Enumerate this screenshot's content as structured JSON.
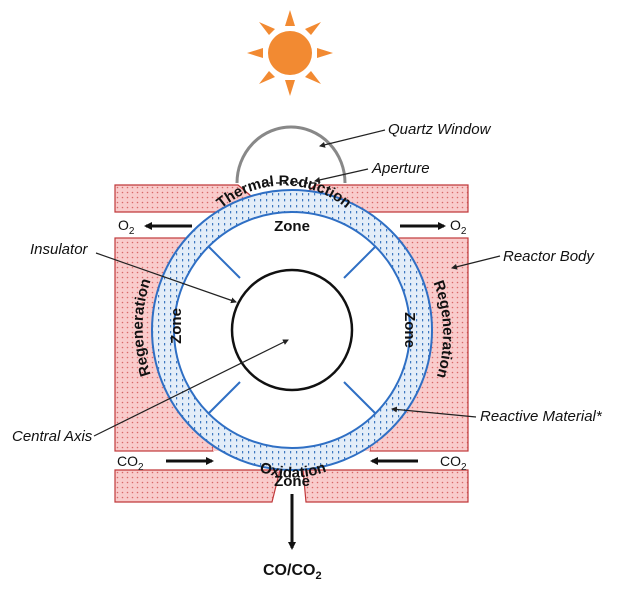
{
  "labels": {
    "quartz_window": "Quartz Window",
    "aperture": "Aperture",
    "reactor_body": "Reactor Body",
    "insulator": "Insulator",
    "central_axis": "Central Axis",
    "reactive_material": "Reactive Material*"
  },
  "zones": {
    "thermal_reduction": "Thermal Reduction",
    "thermal_reduction_zone": "Zone",
    "regeneration": "Regeneration",
    "regeneration_zone": "Zone",
    "oxidation": "Oxidation",
    "oxidation_zone": "Zone"
  },
  "flows": {
    "o2": "O",
    "o2_sub": "2",
    "co2": "CO",
    "co2_sub": "2",
    "product_main": "CO/CO",
    "product_sub": "2"
  },
  "colors": {
    "reactor_fill": "#f9cccc",
    "reactor_stroke": "#c0393b",
    "ring_blue": "#2f6fc4",
    "ring_fill": "#dce8f6",
    "sun": "#f28a32"
  }
}
